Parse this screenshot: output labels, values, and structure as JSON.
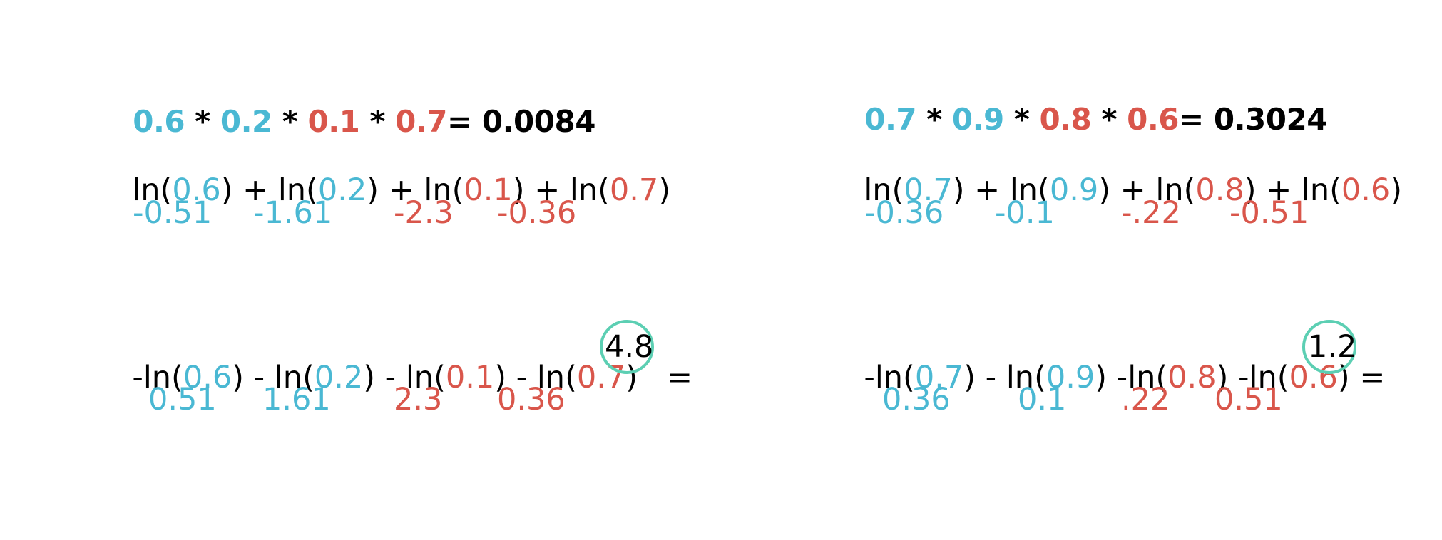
{
  "left": {
    "product": {
      "a": "0.6",
      "op1": " * ",
      "b": "0.2",
      "op2": " * ",
      "c": "0.1",
      "op3": " * ",
      "d": "0.7",
      "result": "= 0.0084"
    },
    "ln_expr": {
      "p1": "ln(",
      "a": "0.6",
      "p2": ") + ln(",
      "b": "0.2",
      "p3": ") + ln(",
      "c": "0.1",
      "p4": ") + ln(",
      "d": "0.7",
      "p5": ")"
    },
    "ln_values": [
      "-0.51",
      "-1.61",
      "-2.3",
      "-0.36"
    ],
    "neg_expr": {
      "p1": "-ln(",
      "a": "0.6",
      "p2": ") - ln(",
      "b": "0.2",
      "p3": ") - ln(",
      "c": "0.1",
      "p4": ") - ln(",
      "d": "0.7",
      "p5": ")   =",
      "result": "4.8"
    },
    "neg_values": [
      "0.51",
      "1.61",
      "2.3",
      "0.36"
    ]
  },
  "right": {
    "product": {
      "a": "0.7",
      "op1": " * ",
      "b": "0.9",
      "op2": " * ",
      "c": "0.8",
      "op3": " * ",
      "d": "0.6",
      "result": "= 0.3024"
    },
    "ln_expr": {
      "p1": "ln(",
      "a": "0.7",
      "p2": ") + ln(",
      "b": "0.9",
      "p3": ") + ln(",
      "c": "0.8",
      "p4": ") + ln(",
      "d": "0.6",
      "p5": ")"
    },
    "ln_values": [
      "-0.36",
      "-0.1",
      "-.22",
      "-0.51"
    ],
    "neg_expr": {
      "p1": "-ln(",
      "a": "0.7",
      "p2": ") - ln(",
      "b": "0.9",
      "p3": ") -ln(",
      "c": "0.8",
      "p4": ") -ln(",
      "d": "0.6",
      "p5": ") =",
      "result": "1.2"
    },
    "neg_values": [
      "0.36",
      "0.1",
      ".22",
      "0.51"
    ]
  },
  "colors": {
    "blue": "#4ab8d3",
    "red": "#d9564b",
    "circle": "#5ccfb3"
  }
}
